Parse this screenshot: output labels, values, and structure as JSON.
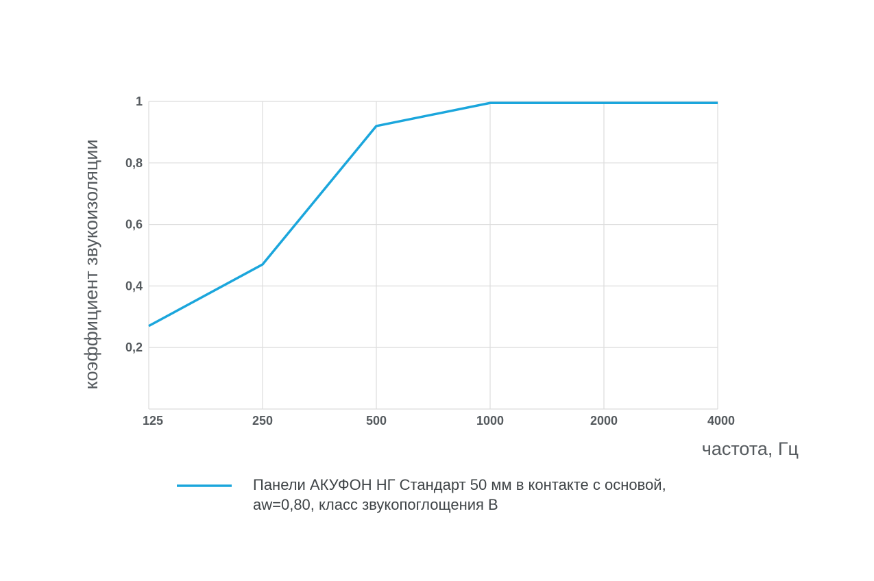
{
  "chart_data": {
    "type": "line",
    "xlabel": "частота, Гц",
    "ylabel": "коэффициент звукоизоляции",
    "x": [
      "125",
      "250",
      "500",
      "1000",
      "2000",
      "4000"
    ],
    "ylim": [
      0,
      1
    ],
    "yticks": [
      "0,2",
      "0,4",
      "0,6",
      "0,8",
      "1"
    ],
    "grid": true,
    "legend_position": "bottom",
    "series": [
      {
        "name": "Панели АКУФОН НГ Стандарт 50 мм в контакте с основой, aw=0,80, класс звукопоглощения B",
        "name_lines": [
          "Панели АКУФОН НГ Стандарт 50 мм в контакте с основой,",
          "aw=0,80, класс звукопоглощения B"
        ],
        "values": [
          0.27,
          0.47,
          0.92,
          0.995,
          0.995,
          0.995
        ],
        "color": "#1ba6dc"
      }
    ],
    "grid_color": "#dcdcdc"
  }
}
